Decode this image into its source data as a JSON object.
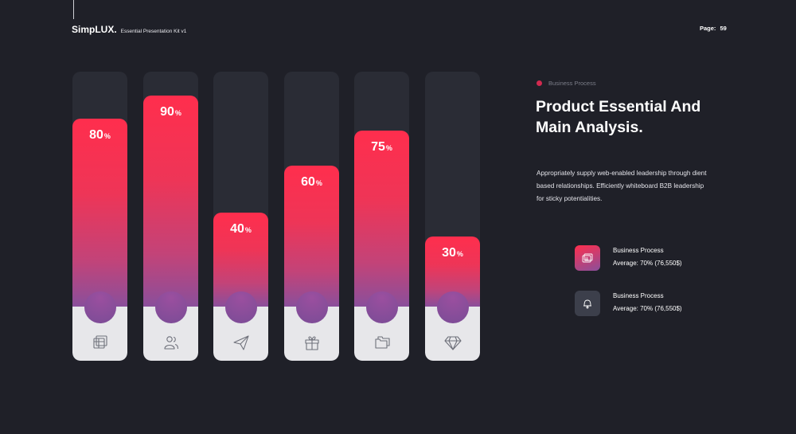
{
  "header": {
    "brand": "SimpLUX.",
    "kit": "Essential Presentation Kit v1",
    "page_label": "Page:",
    "page_number": "59"
  },
  "chart_data": {
    "type": "bar",
    "categories": [
      "",
      "",
      "",
      "",
      "",
      ""
    ],
    "values": [
      80,
      90,
      40,
      60,
      75,
      30
    ],
    "value_unit": "%",
    "ylim": [
      0,
      100
    ],
    "icons": [
      "frames-icon",
      "users-icon",
      "paper-plane-icon",
      "gift-icon",
      "folders-icon",
      "diamond-icon"
    ],
    "gradient": [
      "#ff2e4d",
      "#8a4f9b"
    ]
  },
  "info": {
    "tag": "Business Process",
    "title_line1": "Product Essential And",
    "title_line2": "Main Analysis.",
    "desc_line1": "Appropriately supply web-enabled leadership through dient",
    "desc_line2": "based relationships. Efficiently whiteboard B2B leadership",
    "desc_line3": "for sticky potentialities."
  },
  "legend": [
    {
      "title": "Business Process",
      "detail": "Average: 70% (76,550$)",
      "icon": "frames-icon"
    },
    {
      "title": "Business Process",
      "detail": "Average: 70% (76,550$)",
      "icon": "bell-icon"
    }
  ],
  "colors": {
    "background": "#1f2028",
    "track": "#2a2c35",
    "base": "#e7e7ea",
    "accent": "#ff2e4d",
    "accent_end": "#8a4f9b",
    "tag_dot": "#d12a4f"
  }
}
